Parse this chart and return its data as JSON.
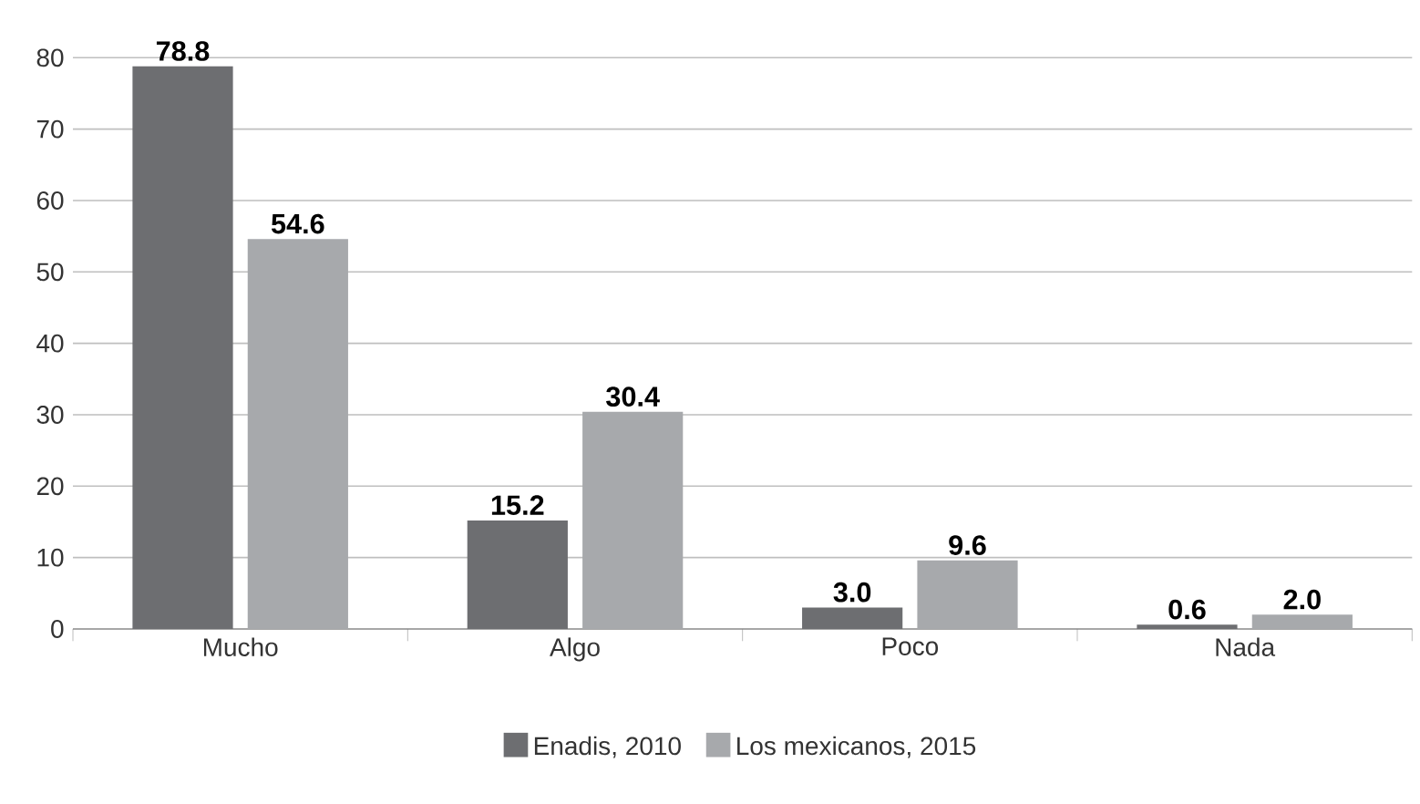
{
  "chart_data": {
    "type": "bar",
    "categories": [
      "Mucho",
      "Algo",
      "Poco",
      "Nada"
    ],
    "series": [
      {
        "name": "Enadis, 2010",
        "color": "#6d6e71",
        "values": [
          78.8,
          15.2,
          3.0,
          0.6
        ],
        "value_labels": [
          "78.8",
          "15.2",
          "3.0",
          "0.6"
        ]
      },
      {
        "name": "Los mexicanos, 2015",
        "color": "#a7a9ac",
        "values": [
          54.6,
          30.4,
          9.6,
          2.0
        ],
        "value_labels": [
          "54.6",
          "30.4",
          "9.6",
          "2.0"
        ]
      }
    ],
    "ylim": [
      0,
      80
    ],
    "yticks": [
      0,
      10,
      20,
      30,
      40,
      50,
      60,
      70,
      80
    ],
    "grid": "y",
    "legend": "bottom"
  }
}
